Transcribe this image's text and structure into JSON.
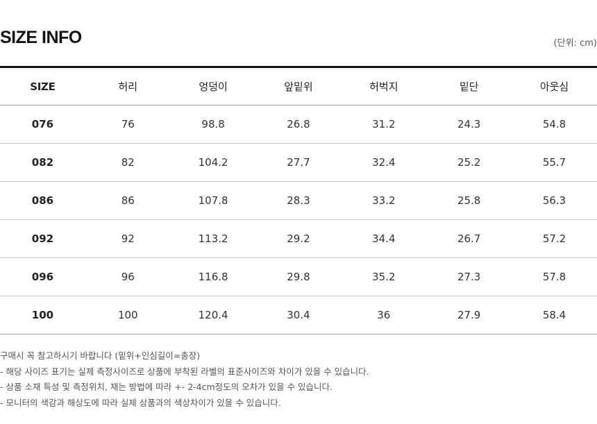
{
  "header": {
    "title": "SIZE INFO",
    "unit": "(단위: cm)"
  },
  "table": {
    "columns": [
      "SIZE",
      "허리",
      "엉덩이",
      "앞밑위",
      "허벅지",
      "밑단",
      "아웃심"
    ],
    "rows": [
      [
        "076",
        "76",
        "98.8",
        "26.8",
        "31.2",
        "24.3",
        "54.8"
      ],
      [
        "082",
        "82",
        "104.2",
        "27.7",
        "32.4",
        "25.2",
        "55.7"
      ],
      [
        "086",
        "86",
        "107.8",
        "28.3",
        "33.2",
        "25.8",
        "56.3"
      ],
      [
        "092",
        "92",
        "113.2",
        "29.2",
        "34.4",
        "26.7",
        "57.2"
      ],
      [
        "096",
        "96",
        "116.8",
        "29.8",
        "35.2",
        "27.3",
        "57.8"
      ],
      [
        "100",
        "100",
        "120.4",
        "30.4",
        "36",
        "27.9",
        "58.4"
      ]
    ]
  },
  "notes": [
    "구매시 꼭 참고하시기 바랍니다 (밑위+인심길이=총장)",
    "- 해당 사이즈 표기는 실제 측정사이즈로 상품에 부착된 라벨의 표준사이즈와 차이가 있을 수 있습니다.",
    "- 상품 소재 특성 및 측정위치, 재는 방법에 따라 +- 2-4cm정도의 오차가 있을 수 있습니다.",
    "- 모니터의 색감과 해상도에 따라 실제 상품과의 색상차이가 있을 수 있습니다."
  ]
}
